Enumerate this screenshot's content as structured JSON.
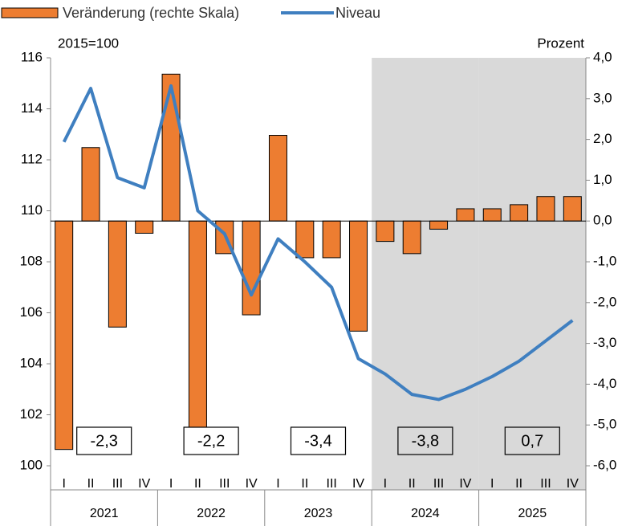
{
  "chart_data": {
    "type": "bar",
    "annotations": {
      "left_unit": "2015=100",
      "right_unit": "Prozent"
    },
    "categories": [
      "I",
      "II",
      "III",
      "IV",
      "I",
      "II",
      "III",
      "IV",
      "I",
      "II",
      "III",
      "IV",
      "I",
      "II",
      "III",
      "IV",
      "I",
      "II",
      "III",
      "IV"
    ],
    "years": [
      "2021",
      "2022",
      "2023",
      "2024",
      "2025"
    ],
    "annual_labels": [
      "-2,3",
      "-2,2",
      "-3,4",
      "-3,8",
      "0,7"
    ],
    "shaded_years": [
      3,
      4
    ],
    "series": [
      {
        "name": "Veränderung (rechte Skala)",
        "type": "bar",
        "axis": "y2",
        "color": "#ed7d31",
        "values": [
          -5.6,
          1.8,
          -2.6,
          -0.3,
          3.6,
          -5.5,
          -0.8,
          -2.3,
          2.1,
          -0.9,
          -0.9,
          -2.7,
          -0.5,
          -0.8,
          -0.2,
          0.3,
          0.3,
          0.4,
          0.6,
          0.6
        ]
      },
      {
        "name": "Niveau",
        "type": "line",
        "color": "#3f7fc0",
        "values": [
          112.7,
          114.8,
          111.3,
          110.9,
          114.9,
          110.0,
          109.1,
          106.7,
          108.9,
          108.0,
          107.0,
          104.2,
          103.6,
          102.8,
          102.6,
          103.0,
          103.5,
          104.1,
          104.9,
          105.7
        ]
      }
    ],
    "ylim": [
      100,
      116
    ],
    "yticks": [
      100,
      102,
      104,
      106,
      108,
      110,
      112,
      114,
      116
    ],
    "y2lim": [
      -6,
      4
    ],
    "y2ticks": [
      {
        "value": -6,
        "label": "-6,0"
      },
      {
        "value": -5,
        "label": "-5,0"
      },
      {
        "value": -4,
        "label": "-4,0"
      },
      {
        "value": -3,
        "label": "-3,0"
      },
      {
        "value": -2,
        "label": "-2,0"
      },
      {
        "value": -1,
        "label": "-1,0"
      },
      {
        "value": 0,
        "label": "0,0"
      },
      {
        "value": 1,
        "label": "1,0"
      },
      {
        "value": 2,
        "label": "2,0"
      },
      {
        "value": 3,
        "label": "3,0"
      },
      {
        "value": 4,
        "label": "4,0"
      }
    ],
    "legend": "top-left"
  }
}
